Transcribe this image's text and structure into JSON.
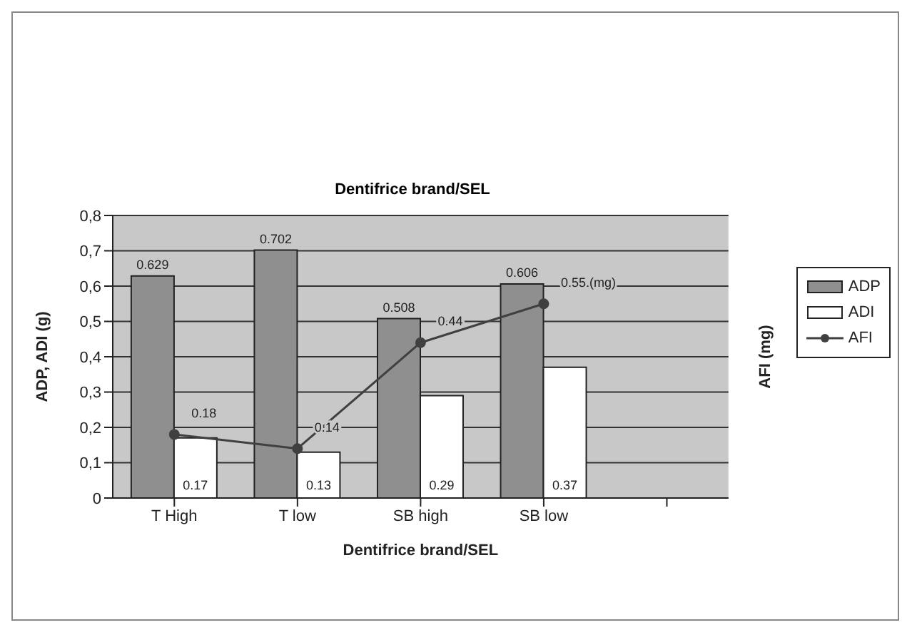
{
  "chart_data": {
    "type": "bar",
    "title": "Dentifrice brand/SEL",
    "xlabel": "Dentifrice brand/SEL",
    "ylabel": "ADP, ADI (g)",
    "y2label": "AFI (mg)",
    "categories": [
      "T  High",
      "T low",
      "SB  high",
      "SB low",
      null
    ],
    "series": [
      {
        "name": "ADP",
        "color": "#8f8f8f",
        "values": [
          0.629,
          0.702,
          0.508,
          0.606,
          null
        ],
        "value_labels": [
          "0.629",
          "0.702",
          "0.508",
          "0.606",
          null
        ]
      },
      {
        "name": "ADI",
        "color": "#ffffff",
        "values": [
          0.17,
          0.13,
          0.29,
          0.37,
          null
        ],
        "value_labels": [
          "0.17",
          "0.13",
          "0.29",
          "0.37",
          null
        ]
      },
      {
        "name": "AFI",
        "type": "line",
        "color": "#404040",
        "values": [
          0.18,
          0.14,
          0.44,
          0.55,
          null
        ],
        "value_labels": [
          "0.18",
          "0.14",
          "0.44",
          "0.55 (mg)",
          null
        ]
      }
    ],
    "ylim": [
      0,
      0.8
    ],
    "yticks": [
      {
        "value": 0,
        "label": "0"
      },
      {
        "value": 0.1,
        "label": "0,1"
      },
      {
        "value": 0.2,
        "label": "0,2"
      },
      {
        "value": 0.3,
        "label": "0,3"
      },
      {
        "value": 0.4,
        "label": "0,4"
      },
      {
        "value": 0.5,
        "label": "0,5"
      },
      {
        "value": 0.6,
        "label": "0,6"
      },
      {
        "value": 0.7,
        "label": "0,7"
      },
      {
        "value": 0.8,
        "label": "0,8"
      }
    ],
    "grid": "y",
    "legend": "right",
    "marker": "circle",
    "line_style": "solid"
  }
}
